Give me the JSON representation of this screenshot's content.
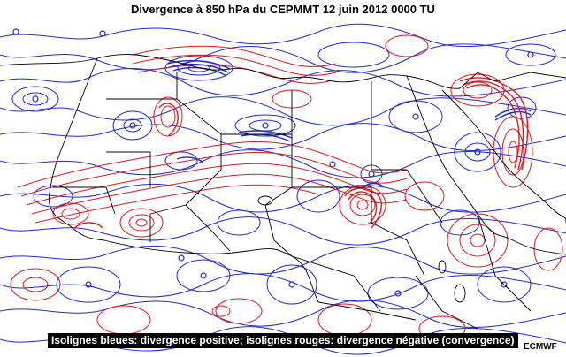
{
  "title": "Divergence à 850 hPa du CEPMMT 12 juin 2012 0000 TU",
  "caption": "Isolignes bleues: divergence positive; isolignes rouges: divergence négative (convergence)",
  "credit": "ECMWF",
  "colors": {
    "positive_divergence": "#1f2bd6",
    "negative_divergence": "#e0191f",
    "borders": "#000000",
    "background": "#ffffff",
    "caption_background": "#000000",
    "caption_text": "#ffffff"
  },
  "legend_mapping": [
    {
      "color": "blue",
      "meaning": "divergence positive"
    },
    {
      "color": "red",
      "meaning": "divergence négative (convergence)"
    }
  ]
}
